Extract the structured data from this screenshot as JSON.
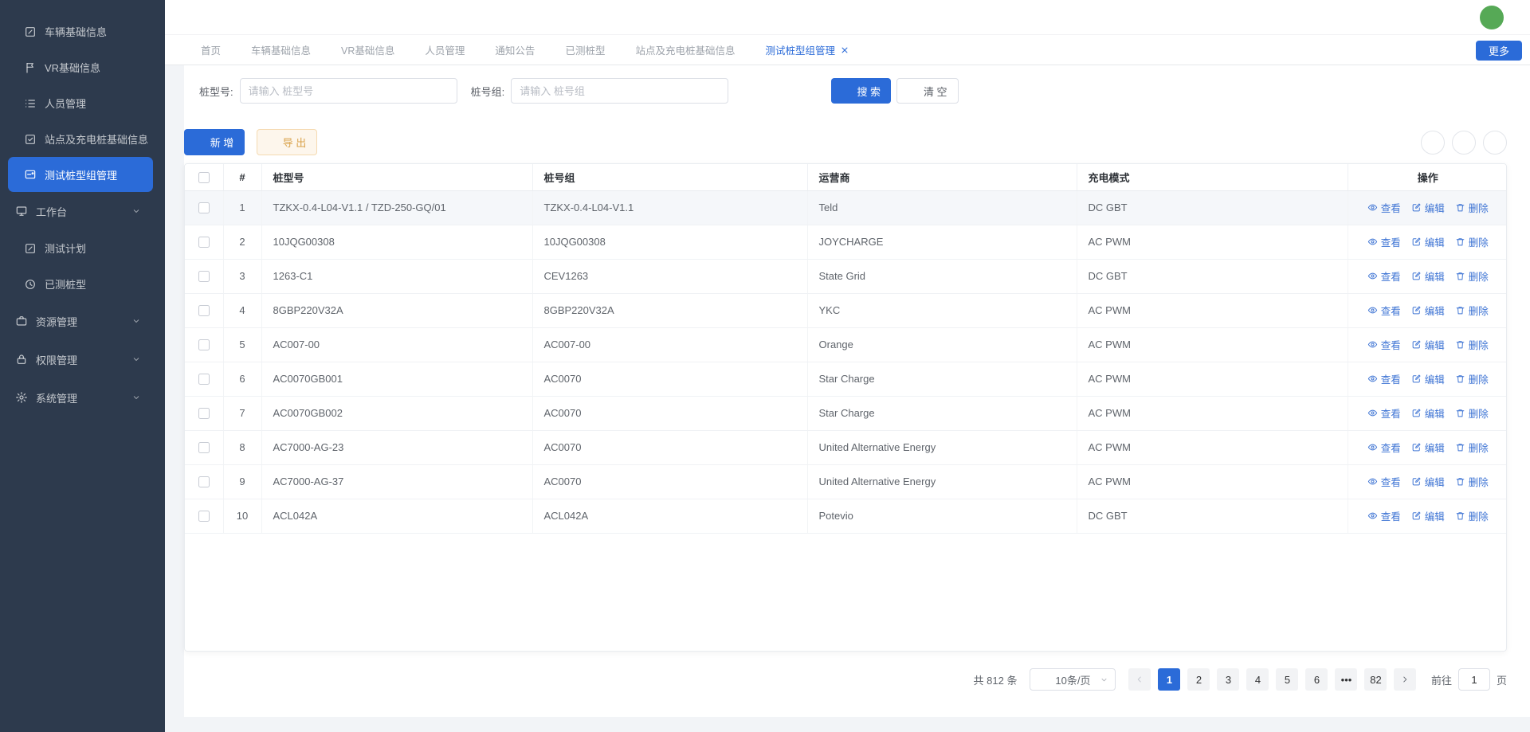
{
  "colors": {
    "primary": "#2b6bd8",
    "sidebar_bg": "#2d3a4d",
    "warning_text": "#d9a24a",
    "avatar_green": "#56a956"
  },
  "header": {
    "more_button": "更多"
  },
  "sidebar": {
    "items": [
      {
        "label": "车辆基础信息",
        "icon": "clipboard-edit-icon",
        "type": "item",
        "active": false
      },
      {
        "label": "VR基础信息",
        "icon": "flag-icon",
        "type": "item",
        "active": false
      },
      {
        "label": "人员管理",
        "icon": "list-icon",
        "type": "item",
        "active": false
      },
      {
        "label": "站点及充电桩基础信息",
        "icon": "check-square-icon",
        "type": "item",
        "active": false
      },
      {
        "label": "测试桩型组管理",
        "icon": "card-icon",
        "type": "item",
        "active": true
      },
      {
        "label": "工作台",
        "icon": "monitor-icon",
        "type": "group",
        "active": false
      },
      {
        "label": "测试计划",
        "icon": "clipboard-edit-icon",
        "type": "child",
        "active": false
      },
      {
        "label": "已测桩型",
        "icon": "history-icon",
        "type": "child",
        "active": false
      },
      {
        "label": "资源管理",
        "icon": "briefcase-icon",
        "type": "group",
        "active": false
      },
      {
        "label": "权限管理",
        "icon": "lock-icon",
        "type": "group",
        "active": false
      },
      {
        "label": "系统管理",
        "icon": "gear-icon",
        "type": "group",
        "active": false
      }
    ]
  },
  "tabs": [
    {
      "label": "首页",
      "active": false,
      "closable": false
    },
    {
      "label": "车辆基础信息",
      "active": false,
      "closable": false
    },
    {
      "label": "VR基础信息",
      "active": false,
      "closable": false
    },
    {
      "label": "人员管理",
      "active": false,
      "closable": false
    },
    {
      "label": "通知公告",
      "active": false,
      "closable": false
    },
    {
      "label": "已测桩型",
      "active": false,
      "closable": false
    },
    {
      "label": "站点及充电桩基础信息",
      "active": false,
      "closable": false
    },
    {
      "label": "测试桩型组管理",
      "active": true,
      "closable": true
    }
  ],
  "filter": {
    "fields": [
      {
        "label": "桩型号:",
        "placeholder": "请输入 桩型号"
      },
      {
        "label": "桩号组:",
        "placeholder": "请输入 桩号组"
      }
    ],
    "search_label": "搜 索",
    "clear_label": "清 空"
  },
  "toolbar": {
    "add_label": "新 增",
    "export_label": "导 出",
    "icon_buttons": [
      "refresh-icon",
      "sliders-icon",
      "search-icon"
    ]
  },
  "table": {
    "headers": [
      "#",
      "桩型号",
      "桩号组",
      "运营商",
      "充电模式",
      "操作"
    ],
    "actions": {
      "view": "查看",
      "edit": "编辑",
      "delete": "删除"
    },
    "rows": [
      {
        "index": "1",
        "model": "TZKX-0.4-L04-V1.1 / TZD-250-GQ/01",
        "group": "TZKX-0.4-L04-V1.1",
        "operator": "Teld",
        "mode": "DC GBT",
        "highlight": true
      },
      {
        "index": "2",
        "model": "10JQG00308",
        "group": "10JQG00308",
        "operator": "JOYCHARGE",
        "mode": "AC PWM",
        "highlight": false
      },
      {
        "index": "3",
        "model": "1263-C1",
        "group": "CEV1263",
        "operator": "State Grid",
        "mode": "DC GBT",
        "highlight": false
      },
      {
        "index": "4",
        "model": "8GBP220V32A",
        "group": "8GBP220V32A",
        "operator": "YKC",
        "mode": "AC PWM",
        "highlight": false
      },
      {
        "index": "5",
        "model": "AC007-00",
        "group": "AC007-00",
        "operator": "Orange",
        "mode": "AC PWM",
        "highlight": false
      },
      {
        "index": "6",
        "model": "AC0070GB001",
        "group": "AC0070",
        "operator": "Star Charge",
        "mode": "AC PWM",
        "highlight": false
      },
      {
        "index": "7",
        "model": "AC0070GB002",
        "group": "AC0070",
        "operator": "Star Charge",
        "mode": "AC PWM",
        "highlight": false
      },
      {
        "index": "8",
        "model": "AC7000-AG-23",
        "group": "AC0070",
        "operator": "United Alternative Energy",
        "mode": "AC PWM",
        "highlight": false
      },
      {
        "index": "9",
        "model": "AC7000-AG-37",
        "group": "AC0070",
        "operator": "United Alternative Energy",
        "mode": "AC PWM",
        "highlight": false
      },
      {
        "index": "10",
        "model": "ACL042A",
        "group": "ACL042A",
        "operator": "Potevio",
        "mode": "DC GBT",
        "highlight": false
      }
    ]
  },
  "pagination": {
    "total": "共 812 条",
    "page_size": "10条/页",
    "pages": [
      "1",
      "2",
      "3",
      "4",
      "5",
      "6",
      "•••",
      "82"
    ],
    "active_page": "1",
    "goto_label": "前往",
    "goto_value": "1",
    "goto_suffix": "页"
  }
}
